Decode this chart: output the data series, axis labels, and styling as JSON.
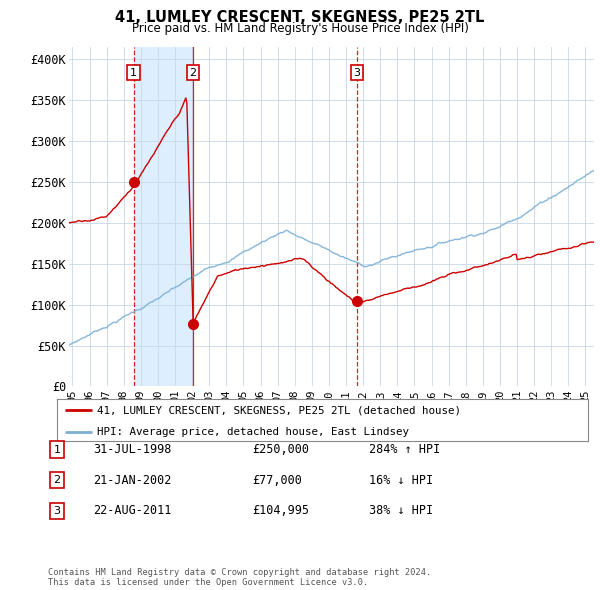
{
  "title": "41, LUMLEY CRESCENT, SKEGNESS, PE25 2TL",
  "subtitle": "Price paid vs. HM Land Registry's House Price Index (HPI)",
  "ylabel_ticks": [
    "£0",
    "£50K",
    "£100K",
    "£150K",
    "£200K",
    "£250K",
    "£300K",
    "£350K",
    "£400K"
  ],
  "ytick_values": [
    0,
    50000,
    100000,
    150000,
    200000,
    250000,
    300000,
    350000,
    400000
  ],
  "ylim": [
    0,
    415000
  ],
  "xlim_start": 1994.8,
  "xlim_end": 2025.5,
  "sale_color": "#cc0000",
  "hpi_color": "#7bafd4",
  "dashed_line_color": "#cc0000",
  "shade_color": "#ddeeff",
  "transactions": [
    {
      "label": "1",
      "date_str": "31-JUL-1998",
      "year": 1998.58,
      "price": 250000,
      "pct": "284%",
      "dir": "↑"
    },
    {
      "label": "2",
      "date_str": "21-JAN-2002",
      "year": 2002.06,
      "price": 77000,
      "pct": "16%",
      "dir": "↓"
    },
    {
      "label": "3",
      "date_str": "22-AUG-2011",
      "year": 2011.64,
      "price": 104995,
      "pct": "38%",
      "dir": "↓"
    }
  ],
  "legend_sale_label": "41, LUMLEY CRESCENT, SKEGNESS, PE25 2TL (detached house)",
  "legend_hpi_label": "HPI: Average price, detached house, East Lindsey",
  "footer_line1": "Contains HM Land Registry data © Crown copyright and database right 2024.",
  "footer_line2": "This data is licensed under the Open Government Licence v3.0.",
  "background_color": "#ffffff",
  "plot_bg_color": "#ffffff",
  "grid_color": "#c8d8e8"
}
